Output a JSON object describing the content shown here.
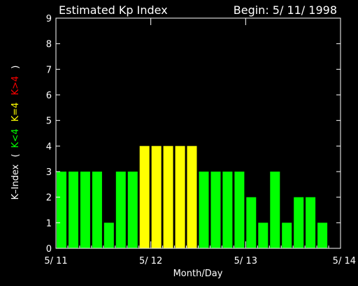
{
  "chart_data": {
    "type": "bar",
    "title": "Estimated Kp Index",
    "begin_label": "Begin: 5/ 11/ 1998",
    "xlabel": "Month/Day",
    "ylabel": {
      "prefix": "K–Index",
      "open_paren": "(",
      "lt": "K<4",
      "eq": "K=4",
      "gt": "K>4",
      "close_paren": ")"
    },
    "ylim": [
      0,
      9
    ],
    "yticks": [
      "0",
      "1",
      "2",
      "3",
      "4",
      "5",
      "6",
      "7",
      "8",
      "9"
    ],
    "xlim": [
      0,
      3
    ],
    "xticks": [
      {
        "value": 0,
        "label": "5/ 11"
      },
      {
        "value": 1,
        "label": "5/ 12"
      },
      {
        "value": 2,
        "label": "5/ 13"
      },
      {
        "value": 3,
        "label": "5/ 14"
      }
    ],
    "bar_interval_days": 0.125,
    "values": [
      3,
      3,
      3,
      3,
      1,
      3,
      3,
      4,
      4,
      4,
      4,
      4,
      3,
      3,
      3,
      3,
      2,
      1,
      3,
      1,
      2,
      2,
      1
    ],
    "colors": {
      "background": "#000000",
      "axis": "#ffffff",
      "text": "#ffffff",
      "low": "#00ff00",
      "mid": "#ffff00",
      "high": "#ff0000"
    }
  }
}
